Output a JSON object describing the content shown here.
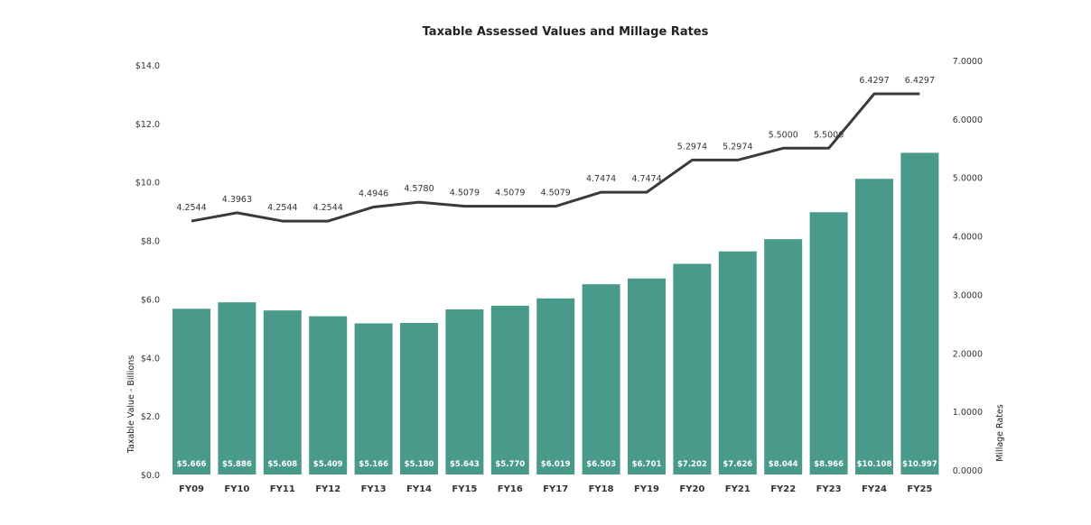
{
  "chart_data": {
    "type": "bar",
    "title": "Taxable Assessed Values and Millage Rates",
    "categories": [
      "FY09",
      "FY10",
      "FY11",
      "FY12",
      "FY13",
      "FY14",
      "FY15",
      "FY16",
      "FY17",
      "FY18",
      "FY19",
      "FY20",
      "FY21",
      "FY22",
      "FY23",
      "FY24",
      "FY25"
    ],
    "series": [
      {
        "type": "bar",
        "axis": "left",
        "color": "#4a9a8c",
        "values": [
          5.666,
          5.886,
          5.608,
          5.409,
          5.166,
          5.18,
          5.643,
          5.77,
          6.019,
          6.503,
          6.701,
          7.202,
          7.626,
          8.044,
          8.966,
          10.108,
          10.997
        ],
        "labels": [
          "$5.666",
          "$5.886",
          "$5.608",
          "$5.409",
          "$5.166",
          "$5.180",
          "$5.643",
          "$5.770",
          "$6.019",
          "$6.503",
          "$6.701",
          "$7.202",
          "$7.626",
          "$8.044",
          "$8.966",
          "$10.108",
          "$10.997"
        ]
      },
      {
        "type": "line",
        "axis": "right",
        "color": "#3a3a3a",
        "values": [
          4.2544,
          4.3963,
          4.2544,
          4.2544,
          4.4946,
          4.578,
          4.5079,
          4.5079,
          4.5079,
          4.7474,
          4.7474,
          5.2974,
          5.2974,
          5.5,
          5.5,
          6.4297,
          6.4297
        ],
        "labels": [
          "4.2544",
          "4.3963",
          "4.2544",
          "4.2544",
          "4.4946",
          "4.5780",
          "4.5079",
          "4.5079",
          "4.5079",
          "4.7474",
          "4.7474",
          "5.2974",
          "5.2974",
          "5.5000",
          "5.5000",
          "6.4297",
          "6.4297"
        ]
      }
    ],
    "y_left": {
      "label": "Taxable Value - Billions",
      "range": [
        0,
        14
      ],
      "ticks": [
        "$0.0",
        "$2.0",
        "$4.0",
        "$6.0",
        "$8.0",
        "$10.0",
        "$12.0",
        "$14.0"
      ]
    },
    "y_right": {
      "label": "Millage Rates",
      "range": [
        0,
        7
      ],
      "ticks": [
        "0.0000",
        "1.0000",
        "2.0000",
        "3.0000",
        "4.0000",
        "5.0000",
        "6.0000",
        "7.0000"
      ]
    },
    "grid": false
  }
}
